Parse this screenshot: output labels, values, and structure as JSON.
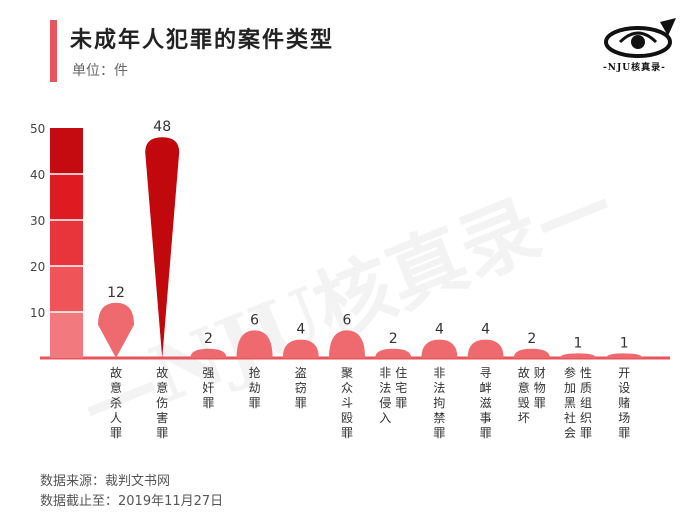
{
  "header": {
    "title": "未成年人犯罪的案件类型",
    "unit": "单位：件"
  },
  "logo": {
    "text": "-NJU核真录-"
  },
  "watermark": "—NJU核真录—",
  "footer": {
    "source": "数据来源：裁判文书网",
    "cutoff": "数据截止至：2019年11月27日"
  },
  "colors": {
    "accent": "#e8555b",
    "scale": [
      "#f27a7e",
      "#ee5458",
      "#e8353b",
      "#dd1b20",
      "#c50b10"
    ]
  },
  "chart_data": {
    "type": "bar",
    "categories": [
      "故意杀人罪",
      "故意伤害罪",
      "强奸罪",
      "抢劫罪",
      "盗窃罪",
      "聚众斗殴罪",
      "非法侵入住宅罪",
      "非法拘禁罪",
      "寻衅滋事罪",
      "故意毁坏财物罪",
      "参加黑社会性质组织罪",
      "开设赌场罪"
    ],
    "values": [
      12,
      48,
      2,
      6,
      4,
      6,
      2,
      4,
      4,
      2,
      1,
      1
    ],
    "yticks": [
      10,
      20,
      30,
      40,
      50
    ],
    "ylim": [
      0,
      50
    ],
    "grid": false
  }
}
